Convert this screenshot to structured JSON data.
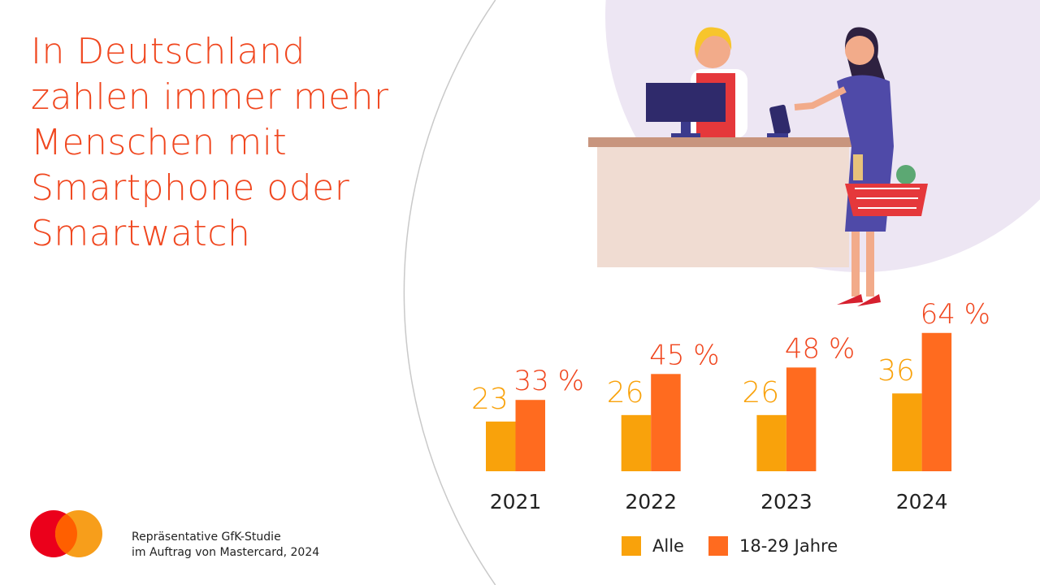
{
  "title_lines": [
    "In Deutschland",
    "zahlen immer mehr",
    "Menschen mit",
    "Smartphone oder",
    "Smartwatch"
  ],
  "source_lines": [
    "Repräsentative GfK-Studie",
    "im Auftrag von Mastercard, 2024"
  ],
  "colors": {
    "title": "#f0461e",
    "alle": "#f9a20b",
    "young": "#ff6b1f",
    "logo_red": "#eb001b",
    "logo_orange": "#f79e1b",
    "bubble": "#ede6f3"
  },
  "chart_data": {
    "type": "bar",
    "categories": [
      "2021",
      "2022",
      "2023",
      "2024"
    ],
    "series": [
      {
        "name": "Alle",
        "values": [
          23,
          26,
          26,
          36
        ],
        "labels": [
          "23",
          "26",
          "26",
          "36"
        ],
        "color": "#f9a20b"
      },
      {
        "name": "18-29 Jahre",
        "values": [
          33,
          45,
          48,
          64
        ],
        "labels": [
          "33 %",
          "45 %",
          "48 %",
          "64 %"
        ],
        "color": "#ff6b1f"
      }
    ],
    "unit": "%",
    "ylim": [
      0,
      70
    ],
    "grid": false,
    "legend_position": "bottom"
  }
}
